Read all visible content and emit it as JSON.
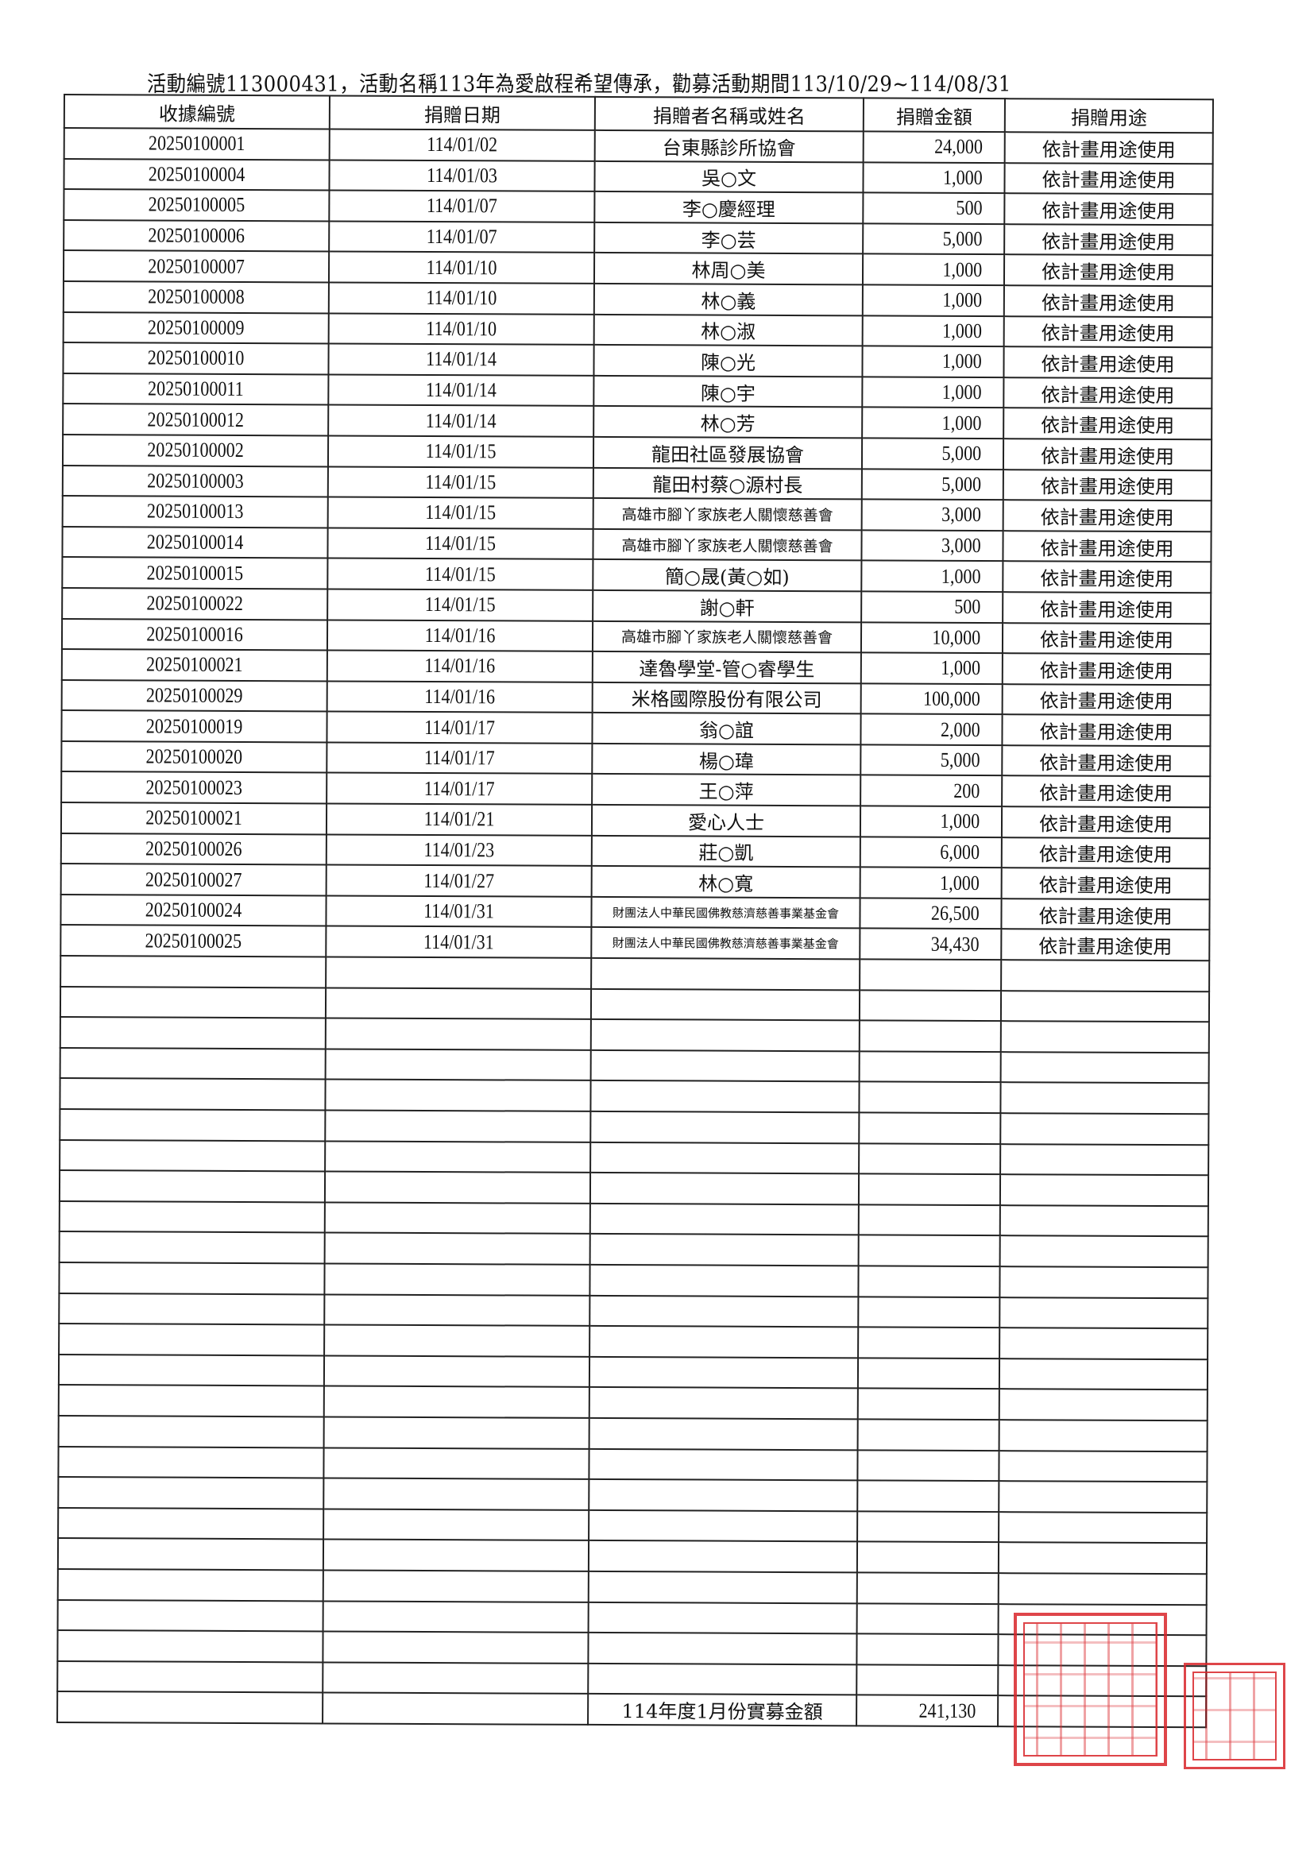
{
  "title": "活動編號113000431，活動名稱113年為愛啟程希望傳承，勸募活動期間113/10/29~114/08/31",
  "headers": [
    "收據編號",
    "捐贈日期",
    "捐贈者名稱或姓名",
    "捐贈金額",
    "捐贈用途"
  ],
  "rows": [
    [
      "20250100001",
      "114/01/02",
      "台東縣診所協會",
      "24,000",
      "依計畫用途使用"
    ],
    [
      "20250100004",
      "114/01/03",
      "吳○文",
      "1,000",
      "依計畫用途使用"
    ],
    [
      "20250100005",
      "114/01/07",
      "李○慶經理",
      "500",
      "依計畫用途使用"
    ],
    [
      "20250100006",
      "114/01/07",
      "李○芸",
      "5,000",
      "依計畫用途使用"
    ],
    [
      "20250100007",
      "114/01/10",
      "林周○美",
      "1,000",
      "依計畫用途使用"
    ],
    [
      "20250100008",
      "114/01/10",
      "林○義",
      "1,000",
      "依計畫用途使用"
    ],
    [
      "20250100009",
      "114/01/10",
      "林○淑",
      "1,000",
      "依計畫用途使用"
    ],
    [
      "20250100010",
      "114/01/14",
      "陳○光",
      "1,000",
      "依計畫用途使用"
    ],
    [
      "20250100011",
      "114/01/14",
      "陳○宇",
      "1,000",
      "依計畫用途使用"
    ],
    [
      "20250100012",
      "114/01/14",
      "林○芳",
      "1,000",
      "依計畫用途使用"
    ],
    [
      "20250100002",
      "114/01/15",
      "龍田社區發展協會",
      "5,000",
      "依計畫用途使用"
    ],
    [
      "20250100003",
      "114/01/15",
      "龍田村蔡○源村長",
      "5,000",
      "依計畫用途使用"
    ],
    [
      "20250100013",
      "114/01/15",
      "高雄市腳丫家族老人關懷慈善會",
      "3,000",
      "依計畫用途使用"
    ],
    [
      "20250100014",
      "114/01/15",
      "高雄市腳丫家族老人關懷慈善會",
      "3,000",
      "依計畫用途使用"
    ],
    [
      "20250100015",
      "114/01/15",
      "簡○晟(黃○如)",
      "1,000",
      "依計畫用途使用"
    ],
    [
      "20250100022",
      "114/01/15",
      "謝○軒",
      "500",
      "依計畫用途使用"
    ],
    [
      "20250100016",
      "114/01/16",
      "高雄市腳丫家族老人關懷慈善會",
      "10,000",
      "依計畫用途使用"
    ],
    [
      "20250100021",
      "114/01/16",
      "達魯學堂-管○睿學生",
      "1,000",
      "依計畫用途使用"
    ],
    [
      "20250100029",
      "114/01/16",
      "米格國際股份有限公司",
      "100,000",
      "依計畫用途使用"
    ],
    [
      "20250100019",
      "114/01/17",
      "翁○誼",
      "2,000",
      "依計畫用途使用"
    ],
    [
      "20250100020",
      "114/01/17",
      "楊○瑋",
      "5,000",
      "依計畫用途使用"
    ],
    [
      "20250100023",
      "114/01/17",
      "王○萍",
      "200",
      "依計畫用途使用"
    ],
    [
      "20250100021",
      "114/01/21",
      "愛心人士",
      "1,000",
      "依計畫用途使用"
    ],
    [
      "20250100026",
      "114/01/23",
      "莊○凱",
      "6,000",
      "依計畫用途使用"
    ],
    [
      "20250100027",
      "114/01/27",
      "林○寬",
      "1,000",
      "依計畫用途使用"
    ],
    [
      "20250100024",
      "114/01/31",
      "財團法人中華民國佛教慈濟慈善事業基金會",
      "26,500",
      "依計畫用途使用"
    ],
    [
      "20250100025",
      "114/01/31",
      "財團法人中華民國佛教慈濟慈善事業基金會",
      "34,430",
      "依計畫用途使用"
    ]
  ],
  "summary": {
    "label": "114年度1月份實募金額",
    "total": "241,130"
  },
  "stamp_color": "#d9252a"
}
